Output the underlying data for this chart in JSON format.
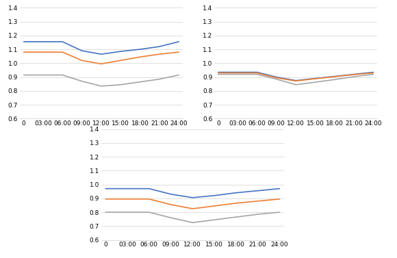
{
  "x_labels": [
    "0",
    "03:00",
    "06:00",
    "09:00",
    "12:00",
    "15:00",
    "18:00",
    "21:00",
    "24:00"
  ],
  "x_values": [
    0,
    1,
    2,
    3,
    4,
    5,
    6,
    7,
    8
  ],
  "top_left": {
    "blue": [
      1.155,
      1.155,
      1.155,
      1.09,
      1.065,
      1.085,
      1.1,
      1.12,
      1.155
    ],
    "orange": [
      1.08,
      1.08,
      1.08,
      1.02,
      0.995,
      1.02,
      1.045,
      1.065,
      1.08
    ],
    "gray": [
      0.915,
      0.915,
      0.915,
      0.87,
      0.835,
      0.845,
      0.865,
      0.885,
      0.915
    ]
  },
  "top_right": {
    "blue": [
      0.935,
      0.935,
      0.935,
      0.9,
      0.875,
      0.89,
      0.905,
      0.92,
      0.935
    ],
    "orange": [
      0.93,
      0.93,
      0.93,
      0.895,
      0.872,
      0.888,
      0.903,
      0.918,
      0.93
    ],
    "gray": [
      0.92,
      0.92,
      0.92,
      0.885,
      0.845,
      0.863,
      0.882,
      0.903,
      0.92
    ]
  },
  "bottom": {
    "blue": [
      0.97,
      0.97,
      0.97,
      0.93,
      0.905,
      0.92,
      0.94,
      0.955,
      0.97
    ],
    "orange": [
      0.895,
      0.895,
      0.895,
      0.855,
      0.825,
      0.845,
      0.865,
      0.88,
      0.895
    ],
    "gray": [
      0.8,
      0.8,
      0.8,
      0.76,
      0.725,
      0.745,
      0.765,
      0.785,
      0.8
    ]
  },
  "ylim": [
    0.6,
    1.4
  ],
  "yticks": [
    0.6,
    0.7,
    0.8,
    0.9,
    1.0,
    1.1,
    1.2,
    1.3,
    1.4
  ],
  "line_colors": {
    "blue": "#4472C4",
    "orange": "#ED7D31",
    "gray": "#A5A5A5"
  },
  "line_width": 1.2,
  "bg_color": "#FFFFFF",
  "grid_color": "#D9D9D9",
  "tick_fontsize": 6.5
}
